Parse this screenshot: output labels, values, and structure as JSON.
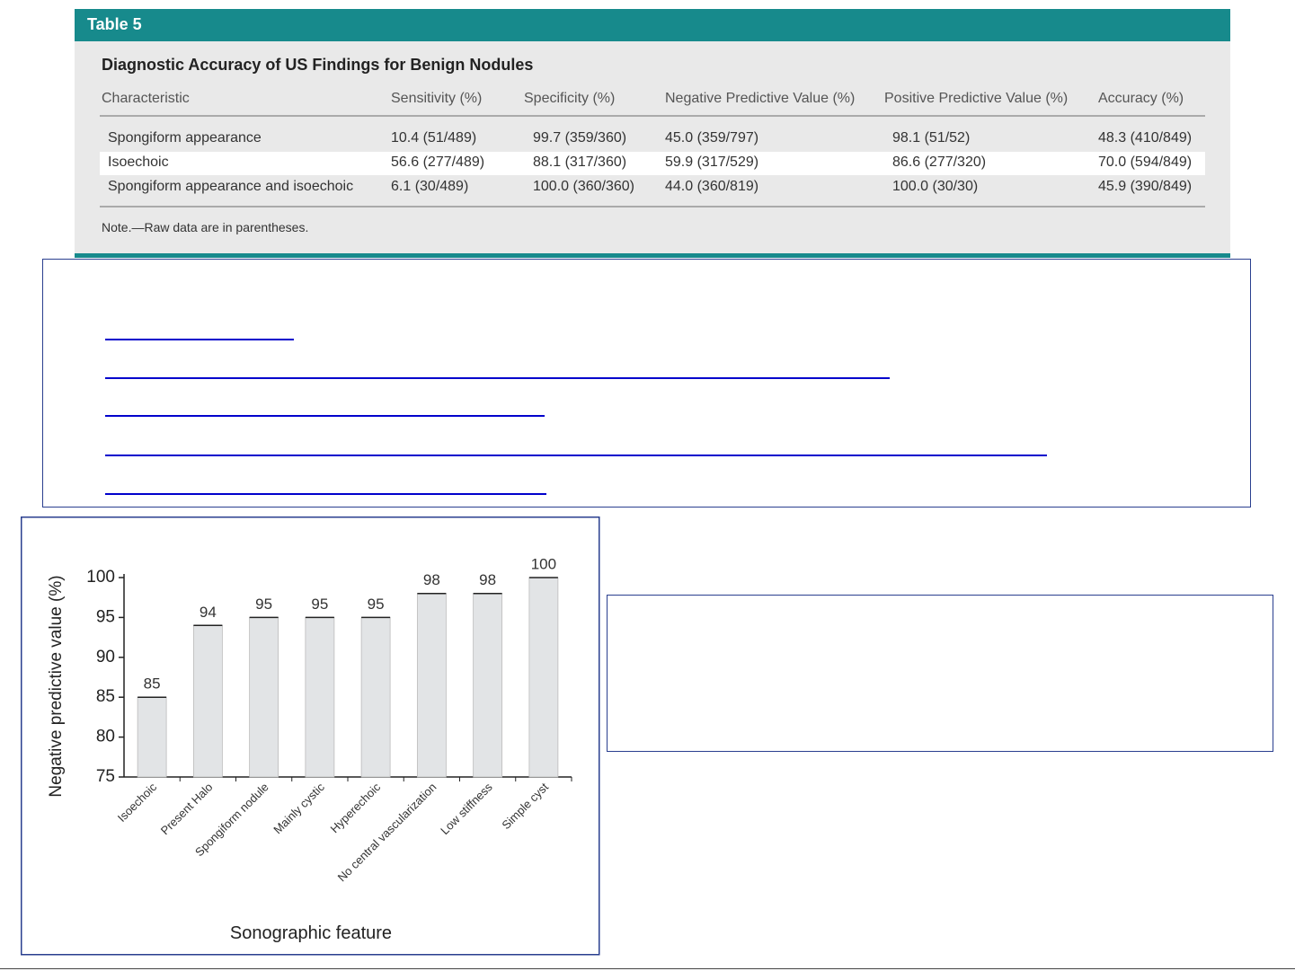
{
  "table": {
    "label": "Table 5",
    "title": "Diagnostic Accuracy of US Findings for Benign Nodules",
    "columns": [
      "Characteristic",
      "Sensitivity (%)",
      "Specificity (%)",
      "Negative Predictive Value (%)",
      "Positive Predictive Value (%)",
      "Accuracy (%)"
    ],
    "rows": [
      [
        "Spongiform appearance",
        "10.4 (51/489)",
        "99.7 (359/360)",
        "45.0 (359/797)",
        "98.1 (51/52)",
        "48.3 (410/849)"
      ],
      [
        "Isoechoic",
        "56.6 (277/489)",
        "88.1 (317/360)",
        "59.9 (317/529)",
        "86.6 (277/320)",
        "70.0 (594/849)"
      ],
      [
        "Spongiform appearance and isoechoic",
        "6.1 (30/489)",
        "100.0 (360/360)",
        "44.0 (360/819)",
        "100.0 (30/30)",
        "45.9 (390/849)"
      ]
    ],
    "note": "Note.—Raw data are in parentheses."
  },
  "chart_data": {
    "type": "bar",
    "y_label": "Negative predictive value (%)",
    "x_label": "Sonographic feature",
    "categories": [
      "Isoechoic",
      "Present Halo",
      "Spongiform nodule",
      "Mainly cystic",
      "Hyperechoic",
      "No central vascularization",
      "Low stiffness",
      "Simple cyst"
    ],
    "values": [
      85,
      94,
      95,
      95,
      95,
      98,
      98,
      100
    ],
    "color": "#e2e4e6",
    "ylim": [
      75,
      100
    ],
    "yticks": [
      75,
      80,
      85,
      90,
      95,
      100
    ]
  }
}
